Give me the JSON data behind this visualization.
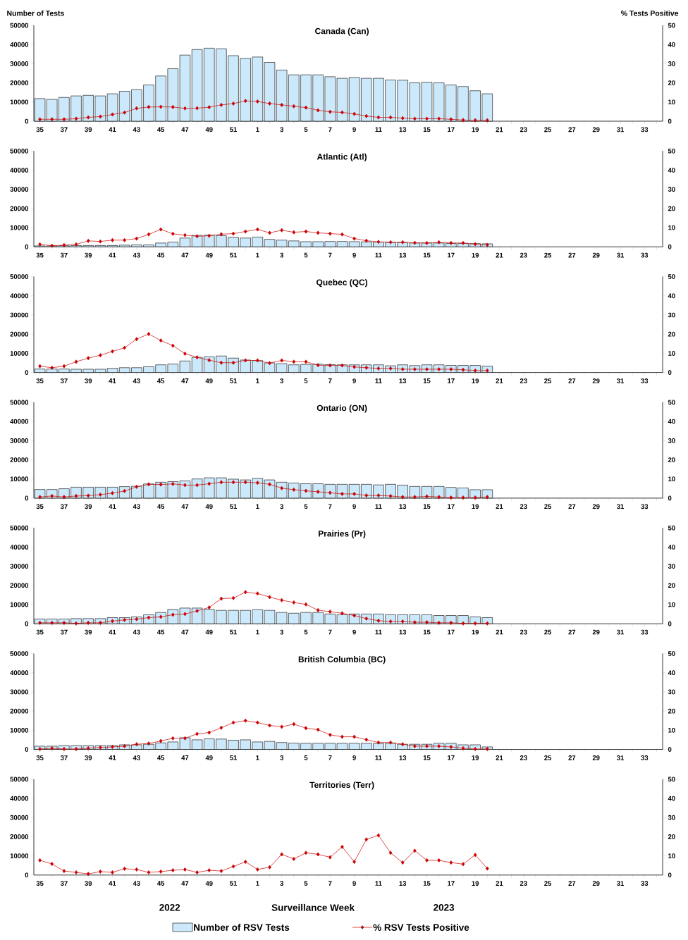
{
  "chart_data": [
    {
      "type": "bar",
      "title": "Canada (Can)",
      "ylabel": "Number of Tests",
      "y2label": "% Tests Positive",
      "legend": "bottom",
      "categories": [
        "35",
        null,
        "37",
        null,
        "39",
        null,
        "41",
        null,
        "43",
        null,
        "45",
        null,
        "47",
        null,
        "49",
        null,
        "51",
        null,
        "1",
        null,
        "3",
        null,
        "5",
        null,
        "7",
        null,
        "9",
        null,
        "11",
        null,
        "13",
        null,
        "15",
        null,
        "17",
        null,
        "19",
        null,
        "21",
        null,
        "23",
        null,
        "25",
        null,
        "27",
        null,
        "29",
        null,
        "31",
        null,
        "33",
        null
      ],
      "ylim": [
        0,
        50000
      ],
      "yticks": [
        0,
        10000,
        20000,
        30000,
        40000,
        50000
      ],
      "y2lim": [
        0,
        50
      ],
      "y2ticks": [
        0,
        10,
        20,
        30,
        40,
        50
      ],
      "series": [
        {
          "name": "Number of RSV Tests",
          "color": "#cce9fb",
          "values": [
            11800,
            11400,
            12400,
            13200,
            13500,
            13200,
            14300,
            15600,
            16400,
            18900,
            23600,
            27400,
            34500,
            37400,
            38100,
            37800,
            34200,
            32800,
            33500,
            30700,
            26700,
            24200,
            24200,
            24200,
            23200,
            22400,
            22800,
            22400,
            22400,
            21500,
            21400,
            20000,
            20300,
            20000,
            18900,
            18100,
            15900,
            14300,
            null,
            null,
            null,
            null,
            null,
            null,
            null,
            null,
            null,
            null,
            null,
            null,
            null,
            null
          ]
        },
        {
          "type": "line",
          "axis": "y2",
          "marker": "diamond",
          "name": "% RSV Tests Positive",
          "color": "#cc0000",
          "values": [
            1.0,
            1.0,
            1.0,
            1.3,
            2.0,
            2.4,
            3.5,
            4.5,
            6.7,
            7.4,
            7.5,
            7.4,
            6.7,
            6.8,
            7.3,
            8.5,
            9.2,
            10.6,
            10.3,
            9.2,
            8.5,
            7.8,
            7.1,
            5.7,
            4.9,
            4.6,
            3.8,
            2.7,
            2.0,
            2.0,
            1.6,
            1.3,
            1.3,
            1.3,
            1.0,
            0.6,
            0.5,
            0.5,
            null,
            null,
            null,
            null,
            null,
            null,
            null,
            null,
            null,
            null,
            null,
            null,
            null,
            null
          ]
        }
      ]
    },
    {
      "type": "bar",
      "title": "Atlantic (Atl)",
      "categories": [
        "35",
        null,
        "37",
        null,
        "39",
        null,
        "41",
        null,
        "43",
        null,
        "45",
        null,
        "47",
        null,
        "49",
        null,
        "51",
        null,
        "1",
        null,
        "3",
        null,
        "5",
        null,
        "7",
        null,
        "9",
        null,
        "11",
        null,
        "13",
        null,
        "15",
        null,
        "17",
        null,
        "19",
        null,
        "21",
        null,
        "23",
        null,
        "25",
        null,
        "27",
        null,
        "29",
        null,
        "31",
        null,
        "33",
        null
      ],
      "ylim": [
        0,
        50000
      ],
      "yticks": [
        0,
        10000,
        20000,
        30000,
        40000,
        50000
      ],
      "y2lim": [
        0,
        50
      ],
      "y2ticks": [
        0,
        10,
        20,
        30,
        40,
        50
      ],
      "series": [
        {
          "color": "#cce9fb",
          "values": [
            500,
            500,
            600,
            700,
            700,
            700,
            700,
            900,
            1000,
            1000,
            2000,
            2500,
            4600,
            6000,
            6100,
            5800,
            5000,
            4600,
            5100,
            3900,
            3500,
            3100,
            2700,
            2700,
            2800,
            2800,
            2700,
            2600,
            2500,
            2300,
            2200,
            2000,
            2000,
            2000,
            1800,
            1800,
            1700,
            1600,
            null,
            null,
            null,
            null,
            null,
            null,
            null,
            null,
            null,
            null,
            null,
            null,
            null,
            null
          ]
        },
        {
          "type": "line",
          "axis": "y2",
          "marker": "diamond",
          "color": "#cc0000",
          "values": [
            1.3,
            0.6,
            0.9,
            1.3,
            3.1,
            2.8,
            3.5,
            3.5,
            4.3,
            6.5,
            9.1,
            6.8,
            6.1,
            5.5,
            5.8,
            6.6,
            6.9,
            8.0,
            9.1,
            7.3,
            8.7,
            7.6,
            8.0,
            7.3,
            6.9,
            6.5,
            4.3,
            3.2,
            2.6,
            2.4,
            2.4,
            2.1,
            2.0,
            2.4,
            2.0,
            2.0,
            1.4,
            1.0,
            null,
            null,
            null,
            null,
            null,
            null,
            null,
            null,
            null,
            null,
            null,
            null,
            null,
            null
          ]
        }
      ]
    },
    {
      "type": "bar",
      "title": "Quebec (QC)",
      "categories": [
        "35",
        null,
        "37",
        null,
        "39",
        null,
        "41",
        null,
        "43",
        null,
        "45",
        null,
        "47",
        null,
        "49",
        null,
        "51",
        null,
        "1",
        null,
        "3",
        null,
        "5",
        null,
        "7",
        null,
        "9",
        null,
        "11",
        null,
        "13",
        null,
        "15",
        null,
        "17",
        null,
        "19",
        null,
        "21",
        null,
        "23",
        null,
        "25",
        null,
        "27",
        null,
        "29",
        null,
        "31",
        null,
        "33",
        null
      ],
      "ylim": [
        0,
        50000
      ],
      "yticks": [
        0,
        10000,
        20000,
        30000,
        40000,
        50000
      ],
      "y2lim": [
        0,
        50
      ],
      "y2ticks": [
        0,
        10,
        20,
        30,
        40,
        50
      ],
      "series": [
        {
          "color": "#cce9fb",
          "values": [
            1800,
            1800,
            1800,
            1700,
            1700,
            1700,
            2200,
            2500,
            2500,
            3000,
            4000,
            4400,
            6000,
            7900,
            8200,
            8600,
            7500,
            6500,
            6200,
            5000,
            4600,
            4000,
            4200,
            4300,
            4100,
            4000,
            4000,
            4000,
            4000,
            3500,
            4000,
            3600,
            4000,
            4000,
            3700,
            3700,
            3700,
            3300,
            null,
            null,
            null,
            null,
            null,
            null,
            null,
            null,
            null,
            null,
            null,
            null,
            null,
            null
          ]
        },
        {
          "type": "line",
          "axis": "y2",
          "marker": "diamond",
          "color": "#cc0000",
          "values": [
            3.3,
            2.5,
            3.3,
            5.6,
            7.5,
            9.0,
            11.0,
            12.9,
            17.4,
            20.1,
            16.7,
            14.0,
            9.8,
            7.9,
            6.4,
            5.1,
            5.1,
            6.3,
            6.3,
            4.9,
            6.3,
            5.6,
            5.6,
            3.8,
            3.7,
            3.7,
            2.9,
            2.5,
            2.1,
            2.1,
            1.7,
            1.7,
            1.7,
            1.7,
            1.7,
            1.4,
            1.0,
            1.0,
            null,
            null,
            null,
            null,
            null,
            null,
            null,
            null,
            null,
            null,
            null,
            null,
            null,
            null
          ]
        }
      ]
    },
    {
      "type": "bar",
      "title": "Ontario (ON)",
      "categories": [
        "35",
        null,
        "37",
        null,
        "39",
        null,
        "41",
        null,
        "43",
        null,
        "45",
        null,
        "47",
        null,
        "49",
        null,
        "51",
        null,
        "1",
        null,
        "3",
        null,
        "5",
        null,
        "7",
        null,
        "9",
        null,
        "11",
        null,
        "13",
        null,
        "15",
        null,
        "17",
        null,
        "19",
        null,
        "21",
        null,
        "23",
        null,
        "25",
        null,
        "27",
        null,
        "29",
        null,
        "31",
        null,
        "33",
        null
      ],
      "ylim": [
        0,
        50000
      ],
      "yticks": [
        0,
        10000,
        20000,
        30000,
        40000,
        50000
      ],
      "y2lim": [
        0,
        50
      ],
      "y2ticks": [
        0,
        10,
        20,
        30,
        40,
        50
      ],
      "series": [
        {
          "color": "#cce9fb",
          "values": [
            4500,
            4500,
            4900,
            5700,
            5700,
            5700,
            5700,
            6000,
            6200,
            7400,
            8300,
            8600,
            9000,
            10000,
            10600,
            10600,
            9900,
            9500,
            10300,
            9500,
            8300,
            7900,
            7500,
            7500,
            7200,
            7200,
            7200,
            7200,
            6900,
            7200,
            6800,
            6100,
            6100,
            6100,
            5600,
            5300,
            4400,
            4400,
            null,
            null,
            null,
            null,
            null,
            null,
            null,
            null,
            null,
            null,
            null,
            null,
            null,
            null
          ]
        },
        {
          "type": "line",
          "axis": "y2",
          "marker": "diamond",
          "color": "#cc0000",
          "values": [
            0.6,
            1.1,
            0.6,
            1.1,
            1.3,
            1.8,
            2.6,
            3.7,
            5.9,
            7.2,
            7.1,
            7.4,
            6.8,
            6.8,
            7.5,
            8.3,
            8.3,
            8.3,
            8.0,
            7.2,
            5.2,
            4.4,
            3.8,
            3.3,
            2.8,
            2.2,
            2.2,
            1.4,
            1.4,
            1.1,
            0.6,
            0.6,
            0.9,
            0.6,
            0.3,
            0.3,
            0.3,
            0.6,
            null,
            null,
            null,
            null,
            null,
            null,
            null,
            null,
            null,
            null,
            null,
            null,
            null,
            null
          ]
        }
      ]
    },
    {
      "type": "bar",
      "title": "Prairies (Pr)",
      "categories": [
        "35",
        null,
        "37",
        null,
        "39",
        null,
        "41",
        null,
        "43",
        null,
        "45",
        null,
        "47",
        null,
        "49",
        null,
        "51",
        null,
        "1",
        null,
        "3",
        null,
        "5",
        null,
        "7",
        null,
        "9",
        null,
        "11",
        null,
        "13",
        null,
        "15",
        null,
        "17",
        null,
        "19",
        null,
        "21",
        null,
        "23",
        null,
        "25",
        null,
        "27",
        null,
        "29",
        null,
        "31",
        null,
        "33",
        null
      ],
      "ylim": [
        0,
        50000
      ],
      "yticks": [
        0,
        10000,
        20000,
        30000,
        40000,
        50000
      ],
      "y2lim": [
        0,
        50
      ],
      "y2ticks": [
        0,
        10,
        20,
        30,
        40,
        50
      ],
      "series": [
        {
          "color": "#cce9fb",
          "values": [
            2500,
            2500,
            2500,
            2700,
            2700,
            2700,
            3200,
            3200,
            3600,
            4700,
            5900,
            7500,
            8200,
            8200,
            7500,
            7000,
            7000,
            7000,
            7400,
            7000,
            5900,
            5500,
            5900,
            5900,
            5100,
            4700,
            5100,
            5100,
            5100,
            4700,
            4700,
            4700,
            4700,
            4300,
            4300,
            4300,
            3600,
            3200,
            null,
            null,
            null,
            null,
            null,
            null,
            null,
            null,
            null,
            null,
            null,
            null,
            null,
            null
          ]
        },
        {
          "type": "line",
          "axis": "y2",
          "marker": "diamond",
          "color": "#cc0000",
          "values": [
            0.5,
            0.5,
            0.5,
            0.2,
            0.5,
            0.5,
            1.4,
            2.0,
            2.4,
            3.2,
            3.6,
            4.7,
            5.1,
            6.7,
            8.5,
            13.1,
            13.4,
            16.5,
            15.8,
            13.9,
            12.3,
            11.1,
            10.1,
            7.1,
            6.3,
            5.5,
            4.3,
            2.7,
            1.6,
            1.2,
            1.2,
            0.8,
            0.8,
            0.5,
            0.5,
            0.2,
            0.2,
            0.2,
            null,
            null,
            null,
            null,
            null,
            null,
            null,
            null,
            null,
            null,
            null,
            null,
            null,
            null
          ]
        }
      ]
    },
    {
      "type": "bar",
      "title": "British Columbia (BC)",
      "categories": [
        "35",
        null,
        "37",
        null,
        "39",
        null,
        "41",
        null,
        "43",
        null,
        "45",
        null,
        "47",
        null,
        "49",
        null,
        "51",
        null,
        "1",
        null,
        "3",
        null,
        "5",
        null,
        "7",
        null,
        "9",
        null,
        "11",
        null,
        "13",
        null,
        "15",
        null,
        "17",
        null,
        "19",
        null,
        "21",
        null,
        "23",
        null,
        "25",
        null,
        "27",
        null,
        "29",
        null,
        "31",
        null,
        "33",
        null
      ],
      "ylim": [
        0,
        50000
      ],
      "yticks": [
        0,
        10000,
        20000,
        30000,
        40000,
        50000
      ],
      "y2lim": [
        0,
        50
      ],
      "y2ticks": [
        0,
        10,
        20,
        30,
        40,
        50
      ],
      "series": [
        {
          "color": "#cce9fb",
          "values": [
            1700,
            1700,
            2000,
            2000,
            2000,
            2000,
            2000,
            2400,
            2400,
            2700,
            3400,
            3900,
            6100,
            5000,
            5500,
            5400,
            4800,
            5000,
            3900,
            4200,
            3600,
            3300,
            3200,
            3200,
            3200,
            3200,
            3200,
            3200,
            3100,
            3200,
            2700,
            2700,
            2700,
            3200,
            3200,
            2400,
            2400,
            1300,
            null,
            null,
            null,
            null,
            null,
            null,
            null,
            null,
            null,
            null,
            null,
            null,
            null,
            null
          ]
        },
        {
          "type": "line",
          "axis": "y2",
          "marker": "diamond",
          "color": "#cc0000",
          "values": [
            0.2,
            0.6,
            0.2,
            0.2,
            0.6,
            1.0,
            1.3,
            1.7,
            2.7,
            3.1,
            4.4,
            5.8,
            5.8,
            8.1,
            8.8,
            11.3,
            14.0,
            15.0,
            14.0,
            12.5,
            11.8,
            13.2,
            11.1,
            10.3,
            7.6,
            6.6,
            6.6,
            5.1,
            3.6,
            3.6,
            2.7,
            1.7,
            1.7,
            1.7,
            1.3,
            0.6,
            0.2,
            0.2,
            null,
            null,
            null,
            null,
            null,
            null,
            null,
            null,
            null,
            null,
            null,
            null,
            null,
            null
          ]
        }
      ]
    },
    {
      "type": "line",
      "title": "Territories (Terr)",
      "xlabel": "Surveillance Week",
      "annotations": [
        "2022",
        "2023"
      ],
      "categories": [
        "35",
        null,
        "37",
        null,
        "39",
        null,
        "41",
        null,
        "43",
        null,
        "45",
        null,
        "47",
        null,
        "49",
        null,
        "51",
        null,
        "1",
        null,
        "3",
        null,
        "5",
        null,
        "7",
        null,
        "9",
        null,
        "11",
        null,
        "13",
        null,
        "15",
        null,
        "17",
        null,
        "19",
        null,
        "21",
        null,
        "23",
        null,
        "25",
        null,
        "27",
        null,
        "29",
        null,
        "31",
        null,
        "33",
        null
      ],
      "ylim": [
        0,
        50000
      ],
      "yticks": [
        0,
        10000,
        20000,
        30000,
        40000,
        50000
      ],
      "y2lim": [
        0,
        50
      ],
      "y2ticks": [
        0,
        10,
        20,
        30,
        40,
        50
      ],
      "series": [
        {
          "axis": "y2",
          "marker": "diamond",
          "color": "#cc0000",
          "values": [
            7.7,
            5.8,
            2.1,
            1.4,
            0.6,
            1.8,
            1.4,
            3.3,
            2.9,
            1.4,
            1.8,
            2.5,
            2.9,
            1.4,
            2.5,
            2.1,
            4.5,
            6.9,
            2.9,
            4.1,
            10.8,
            8.4,
            11.6,
            10.8,
            9.3,
            14.7,
            6.9,
            18.6,
            20.7,
            11.6,
            6.5,
            12.7,
            7.7,
            7.7,
            6.5,
            5.7,
            10.5,
            3.4,
            null,
            null,
            null,
            null,
            null,
            null,
            null,
            null,
            null,
            null,
            null,
            null,
            null,
            null
          ]
        }
      ]
    }
  ]
}
